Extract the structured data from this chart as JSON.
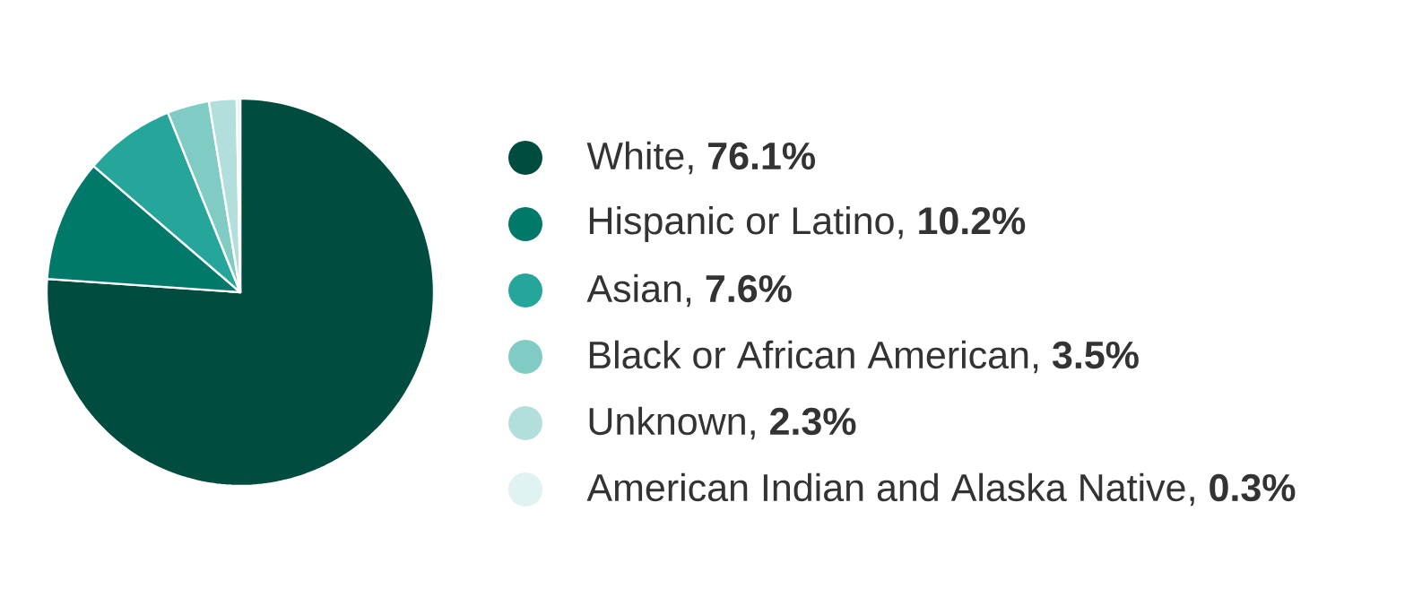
{
  "chart_data": {
    "type": "pie",
    "categories": [
      "White",
      "Hispanic or Latino",
      "Asian",
      "Black or African American",
      "Unknown",
      "American Indian and Alaska Native"
    ],
    "values": [
      76.1,
      10.2,
      7.6,
      3.5,
      2.3,
      0.3
    ],
    "value_labels": [
      ", **76.1%**",
      ", **10.2%**",
      ", **7.6%**",
      ", **3.5%**",
      ", **2.3%**",
      ", **0.3%**"
    ],
    "colors": [
      "#004d40",
      "#00796b",
      "#26a69a",
      "#80cbc4",
      "#b2dfdb",
      "#e0f2f1"
    ],
    "legend": "right"
  }
}
